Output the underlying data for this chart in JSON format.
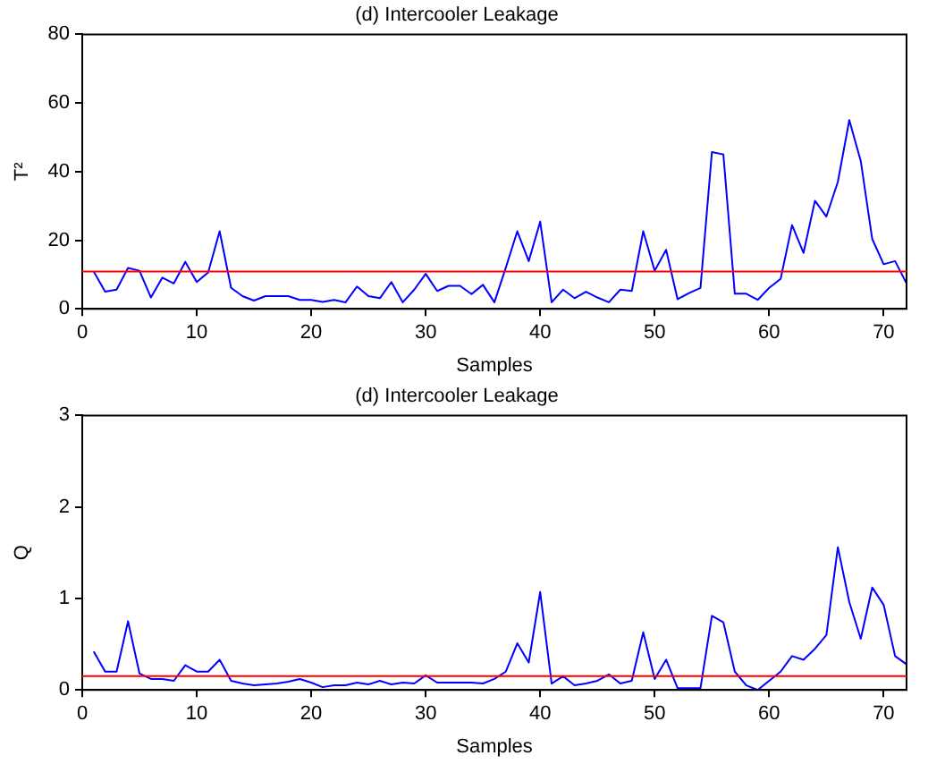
{
  "chart_data": [
    {
      "type": "line",
      "title": "(d) Intercooler Leakage",
      "xlabel": "Samples",
      "ylabel": "T²",
      "xlim": [
        0,
        72
      ],
      "xticks": [
        0,
        10,
        20,
        30,
        40,
        50,
        60,
        70
      ],
      "ylim": [
        0,
        80
      ],
      "yticks": [
        0,
        20,
        40,
        60,
        80
      ],
      "grid": false,
      "legend": false,
      "marker": "none",
      "x": [
        1,
        2,
        3,
        4,
        5,
        6,
        7,
        8,
        9,
        10,
        11,
        12,
        13,
        14,
        15,
        16,
        17,
        18,
        19,
        20,
        21,
        22,
        23,
        24,
        25,
        26,
        27,
        28,
        29,
        30,
        31,
        32,
        33,
        34,
        35,
        36,
        37,
        38,
        39,
        40,
        41,
        42,
        43,
        44,
        45,
        46,
        47,
        48,
        49,
        50,
        51,
        52,
        53,
        54,
        55,
        56,
        57,
        58,
        59,
        60,
        61,
        62,
        63,
        64,
        65,
        66,
        67,
        68,
        69,
        70,
        71,
        72
      ],
      "series": [
        {
          "color": "#0000ff",
          "values": [
            10.9,
            5,
            5.6,
            11.9,
            11.1,
            3.3,
            9.1,
            7.4,
            13.7,
            7.8,
            10.6,
            22.6,
            6.1,
            3.7,
            2.4,
            3.7,
            3.7,
            3.7,
            2.6,
            2.6,
            2,
            2.6,
            1.9,
            6.5,
            3.7,
            3.1,
            7.8,
            1.9,
            5.6,
            10.2,
            5.2,
            6.7,
            6.7,
            4.3,
            7,
            1.9,
            12,
            22.6,
            13.9,
            25.4,
            1.9,
            5.6,
            3.1,
            5,
            3.3,
            1.9,
            5.6,
            5.2,
            22.6,
            11.1,
            17.2,
            2.8,
            4.6,
            6.1,
            45.7,
            45,
            4.4,
            4.4,
            2.6,
            6.1,
            8.7,
            24.4,
            16.3,
            31.5,
            26.9,
            37,
            55,
            43.1,
            20.4,
            13,
            13.9,
            7.4
          ]
        }
      ],
      "ref_lines": [
        {
          "axis": "y",
          "value": 10.9,
          "color": "#ff0000"
        }
      ]
    },
    {
      "type": "line",
      "title": "(d) Intercooler Leakage",
      "xlabel": "Samples",
      "ylabel": "Q",
      "xlim": [
        0,
        72
      ],
      "xticks": [
        0,
        10,
        20,
        30,
        40,
        50,
        60,
        70
      ],
      "ylim": [
        0,
        3
      ],
      "yticks": [
        0,
        1,
        2,
        3
      ],
      "grid": false,
      "legend": false,
      "marker": "none",
      "x": [
        1,
        2,
        3,
        4,
        5,
        6,
        7,
        8,
        9,
        10,
        11,
        12,
        13,
        14,
        15,
        16,
        17,
        18,
        19,
        20,
        21,
        22,
        23,
        24,
        25,
        26,
        27,
        28,
        29,
        30,
        31,
        32,
        33,
        34,
        35,
        36,
        37,
        38,
        39,
        40,
        41,
        42,
        43,
        44,
        45,
        46,
        47,
        48,
        49,
        50,
        51,
        52,
        53,
        54,
        55,
        56,
        57,
        58,
        59,
        60,
        61,
        62,
        63,
        64,
        65,
        66,
        67,
        68,
        69,
        70,
        71,
        72
      ],
      "series": [
        {
          "color": "#0000ff",
          "values": [
            0.42,
            0.2,
            0.2,
            0.75,
            0.18,
            0.12,
            0.12,
            0.1,
            0.27,
            0.2,
            0.2,
            0.33,
            0.1,
            0.07,
            0.05,
            0.06,
            0.07,
            0.09,
            0.12,
            0.08,
            0.03,
            0.05,
            0.05,
            0.08,
            0.06,
            0.1,
            0.06,
            0.08,
            0.07,
            0.16,
            0.08,
            0.08,
            0.08,
            0.08,
            0.07,
            0.12,
            0.2,
            0.51,
            0.3,
            1.07,
            0.07,
            0.15,
            0.05,
            0.07,
            0.1,
            0.17,
            0.07,
            0.1,
            0.63,
            0.12,
            0.33,
            0.02,
            0.02,
            0.02,
            0.81,
            0.74,
            0.2,
            0.05,
            0,
            0.1,
            0.2,
            0.37,
            0.33,
            0.45,
            0.6,
            1.56,
            0.96,
            0.56,
            1.12,
            0.93,
            0.37,
            0.28
          ]
        }
      ],
      "ref_lines": [
        {
          "axis": "y",
          "value": 0.15,
          "color": "#ff0000"
        }
      ]
    }
  ]
}
